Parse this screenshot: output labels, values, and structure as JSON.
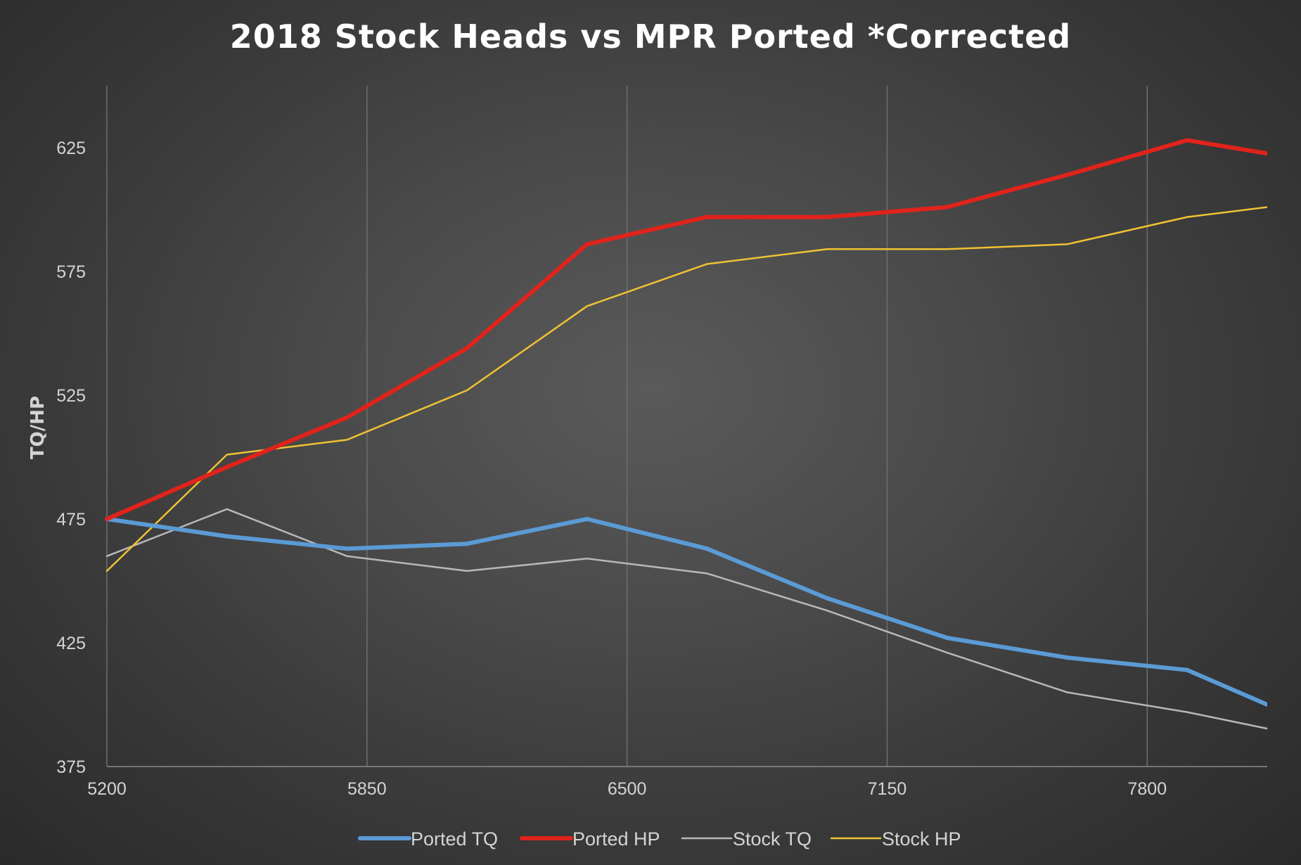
{
  "chart_data": {
    "type": "line",
    "title": "2018 Stock Heads vs MPR Ported *Corrected",
    "xlabel": "",
    "ylabel": "TQ/HP",
    "xlim": [
      5200,
      8100
    ],
    "ylim": [
      375,
      650
    ],
    "xticks": [
      5200,
      5850,
      6500,
      7150,
      7800
    ],
    "yticks": [
      375,
      425,
      475,
      525,
      575,
      625
    ],
    "grid": "vertical",
    "legend": "bottom",
    "x": [
      5200,
      5500,
      5800,
      6100,
      6400,
      6700,
      7000,
      7300,
      7600,
      7900,
      8200
    ],
    "series": [
      {
        "name": "Ported TQ",
        "color": "#5b9bd5",
        "width": 6,
        "values": [
          475,
          468,
          463,
          465,
          475,
          463,
          443,
          427,
          419,
          414,
          393
        ]
      },
      {
        "name": "Ported HP",
        "color": "#e0231b",
        "width": 6,
        "values": [
          475,
          496,
          516,
          544,
          586,
          597,
          597,
          601,
          614,
          628,
          620
        ]
      },
      {
        "name": "Stock TQ",
        "color": "#b8b8b8",
        "width": 2.5,
        "values": [
          460,
          479,
          460,
          454,
          459,
          453,
          438,
          421,
          405,
          397,
          387
        ]
      },
      {
        "name": "Stock HP",
        "color": "#f0c232",
        "width": 2.5,
        "values": [
          454,
          501,
          507,
          527,
          561,
          578,
          584,
          584,
          586,
          597,
          603
        ]
      }
    ]
  }
}
